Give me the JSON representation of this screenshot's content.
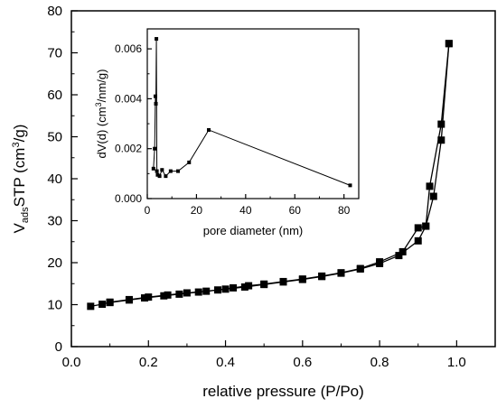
{
  "chart_data": [
    {
      "type": "line",
      "xlabel": "relative pressure (P/Po)",
      "ylabel_parts": {
        "main": "V",
        "subscript": "ads",
        "mid": "STP (cm",
        "superscript": "3",
        "end": "/g)"
      },
      "xlim": [
        0.0,
        1.1
      ],
      "ylim": [
        0,
        80
      ],
      "xticks": [
        0.0,
        0.2,
        0.4,
        0.6,
        0.8,
        1.0
      ],
      "xtick_labels": [
        "0.0",
        "0.2",
        "0.4",
        "0.6",
        "0.8",
        "1.0"
      ],
      "yticks": [
        0,
        10,
        20,
        30,
        40,
        50,
        60,
        70,
        80
      ],
      "ytick_labels": [
        "0",
        "10",
        "20",
        "30",
        "40",
        "50",
        "60",
        "70",
        "80"
      ],
      "grid": false,
      "marker": "square",
      "color": "#000000",
      "series": [
        {
          "x": [
            0.05,
            0.08,
            0.1,
            0.15,
            0.2,
            0.25,
            0.3,
            0.35,
            0.4,
            0.45,
            0.5,
            0.55,
            0.6,
            0.65,
            0.7,
            0.75,
            0.8,
            0.85,
            0.9,
            0.92,
            0.94,
            0.96,
            0.98
          ],
          "y": [
            9.6,
            10.1,
            10.6,
            11.2,
            11.8,
            12.3,
            12.8,
            13.2,
            13.7,
            14.2,
            14.8,
            15.4,
            16.0,
            16.7,
            17.5,
            18.5,
            19.8,
            21.7,
            25.2,
            28.7,
            35.8,
            49.2,
            72.2
          ]
        },
        {
          "x": [
            0.98,
            0.96,
            0.93,
            0.92,
            0.9,
            0.86,
            0.8,
            0.75,
            0.7,
            0.65,
            0.6,
            0.55,
            0.5,
            0.46,
            0.42,
            0.38,
            0.33,
            0.28,
            0.24,
            0.19,
            0.15,
            0.1
          ],
          "y": [
            72.2,
            53.0,
            38.2,
            28.7,
            28.3,
            22.6,
            20.2,
            18.6,
            17.6,
            16.8,
            16.1,
            15.5,
            14.9,
            14.5,
            14.0,
            13.5,
            13.0,
            12.5,
            12.1,
            11.6,
            11.1,
            10.5
          ]
        }
      ]
    },
    {
      "type": "line",
      "xlabel": "pore diameter (nm)",
      "ylabel_parts": {
        "main": "dV(d) (cm",
        "superscript": "3",
        "end": "/nm/g)"
      },
      "xlim": [
        0,
        86
      ],
      "ylim": [
        0.0,
        0.0068
      ],
      "xticks": [
        0,
        20,
        40,
        60,
        80
      ],
      "xtick_labels": [
        "0",
        "20",
        "40",
        "60",
        "80"
      ],
      "yticks": [
        0.0,
        0.002,
        0.004,
        0.006
      ],
      "ytick_labels": [
        "0.000",
        "0.002",
        "0.004",
        "0.006"
      ],
      "grid": false,
      "marker": "square",
      "color": "#000000",
      "series": [
        {
          "x": [
            2.5,
            3.0,
            3.3,
            3.5,
            3.7,
            3.9,
            4.2,
            5.0,
            6.0,
            7.5,
            9.5,
            12.5,
            17.0,
            25.0,
            82.5
          ],
          "y": [
            0.0012,
            0.002,
            0.0041,
            0.0038,
            0.0064,
            0.0011,
            0.00095,
            0.0009,
            0.00115,
            0.0009,
            0.0011,
            0.0011,
            0.00145,
            0.00275,
            0.00053
          ]
        }
      ]
    }
  ]
}
